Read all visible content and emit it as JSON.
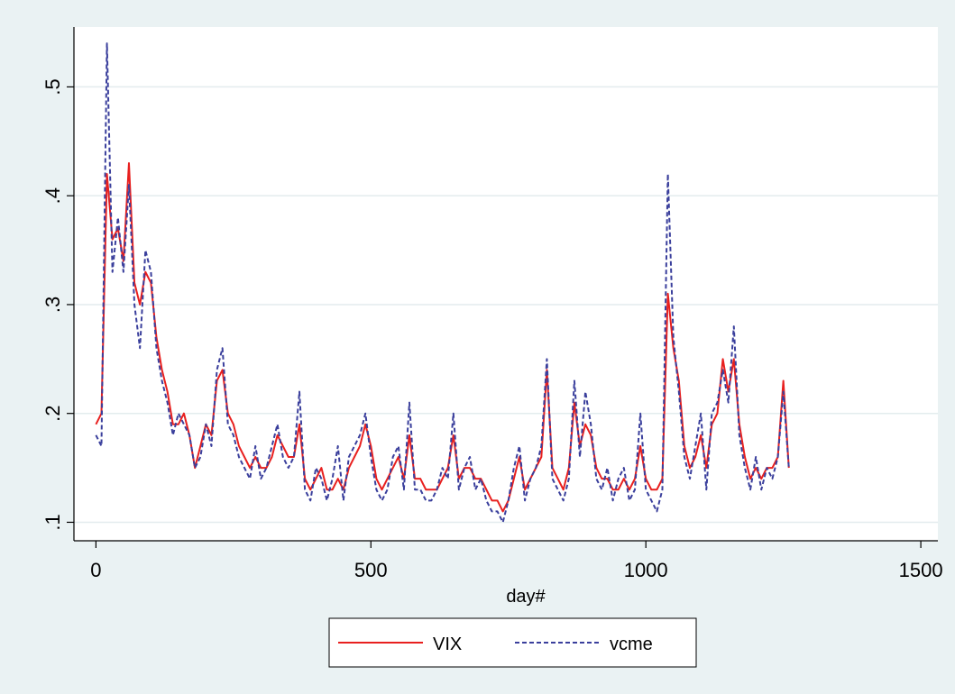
{
  "chart_data": {
    "type": "line",
    "x_label": "day#",
    "x": [
      0,
      10,
      20,
      30,
      40,
      50,
      60,
      70,
      80,
      90,
      100,
      110,
      120,
      130,
      140,
      150,
      160,
      170,
      180,
      190,
      200,
      210,
      220,
      230,
      240,
      250,
      260,
      270,
      280,
      290,
      300,
      310,
      320,
      330,
      340,
      350,
      360,
      370,
      380,
      390,
      400,
      410,
      420,
      430,
      440,
      450,
      460,
      470,
      480,
      490,
      500,
      510,
      520,
      530,
      540,
      550,
      560,
      570,
      580,
      590,
      600,
      610,
      620,
      630,
      640,
      650,
      660,
      670,
      680,
      690,
      700,
      710,
      720,
      730,
      740,
      750,
      760,
      770,
      780,
      790,
      800,
      810,
      820,
      830,
      840,
      850,
      860,
      870,
      880,
      890,
      900,
      910,
      920,
      930,
      940,
      950,
      960,
      970,
      980,
      990,
      1000,
      1010,
      1020,
      1030,
      1040,
      1050,
      1060,
      1070,
      1080,
      1090,
      1100,
      1110,
      1120,
      1130,
      1140,
      1150,
      1160,
      1170,
      1180,
      1190,
      1200,
      1210,
      1220,
      1230,
      1240,
      1250,
      1260
    ],
    "series": [
      {
        "name": "VIX",
        "color": "#e8201f",
        "line_style": "solid",
        "values": [
          0.19,
          0.2,
          0.42,
          0.36,
          0.37,
          0.34,
          0.43,
          0.32,
          0.3,
          0.33,
          0.32,
          0.27,
          0.24,
          0.22,
          0.19,
          0.19,
          0.2,
          0.18,
          0.15,
          0.17,
          0.19,
          0.18,
          0.23,
          0.24,
          0.2,
          0.19,
          0.17,
          0.16,
          0.15,
          0.16,
          0.15,
          0.15,
          0.16,
          0.18,
          0.17,
          0.16,
          0.16,
          0.19,
          0.14,
          0.13,
          0.14,
          0.15,
          0.13,
          0.13,
          0.14,
          0.13,
          0.15,
          0.16,
          0.17,
          0.19,
          0.17,
          0.14,
          0.13,
          0.14,
          0.15,
          0.16,
          0.14,
          0.18,
          0.14,
          0.14,
          0.13,
          0.13,
          0.13,
          0.14,
          0.15,
          0.18,
          0.14,
          0.15,
          0.15,
          0.14,
          0.14,
          0.13,
          0.12,
          0.12,
          0.11,
          0.12,
          0.14,
          0.16,
          0.13,
          0.14,
          0.15,
          0.16,
          0.24,
          0.15,
          0.14,
          0.13,
          0.15,
          0.21,
          0.17,
          0.19,
          0.18,
          0.15,
          0.14,
          0.14,
          0.13,
          0.13,
          0.14,
          0.13,
          0.14,
          0.17,
          0.14,
          0.13,
          0.13,
          0.14,
          0.31,
          0.26,
          0.23,
          0.17,
          0.15,
          0.16,
          0.18,
          0.15,
          0.19,
          0.2,
          0.25,
          0.22,
          0.25,
          0.19,
          0.16,
          0.14,
          0.15,
          0.14,
          0.15,
          0.15,
          0.16,
          0.23,
          0.15
        ]
      },
      {
        "name": "vcme",
        "color": "#3a3f9c",
        "line_style": "dashed",
        "values": [
          0.18,
          0.17,
          0.54,
          0.33,
          0.38,
          0.33,
          0.41,
          0.3,
          0.26,
          0.35,
          0.33,
          0.26,
          0.23,
          0.21,
          0.18,
          0.2,
          0.19,
          0.18,
          0.15,
          0.16,
          0.19,
          0.17,
          0.24,
          0.26,
          0.19,
          0.18,
          0.16,
          0.15,
          0.14,
          0.17,
          0.14,
          0.15,
          0.17,
          0.19,
          0.16,
          0.15,
          0.16,
          0.22,
          0.13,
          0.12,
          0.15,
          0.14,
          0.12,
          0.14,
          0.17,
          0.12,
          0.16,
          0.17,
          0.18,
          0.2,
          0.16,
          0.13,
          0.12,
          0.13,
          0.16,
          0.17,
          0.13,
          0.21,
          0.13,
          0.13,
          0.12,
          0.12,
          0.13,
          0.15,
          0.14,
          0.2,
          0.13,
          0.15,
          0.16,
          0.13,
          0.14,
          0.12,
          0.11,
          0.11,
          0.1,
          0.12,
          0.15,
          0.17,
          0.12,
          0.14,
          0.15,
          0.17,
          0.25,
          0.14,
          0.13,
          0.12,
          0.14,
          0.23,
          0.16,
          0.22,
          0.19,
          0.14,
          0.13,
          0.15,
          0.12,
          0.14,
          0.15,
          0.12,
          0.13,
          0.2,
          0.13,
          0.12,
          0.11,
          0.13,
          0.42,
          0.27,
          0.22,
          0.16,
          0.14,
          0.17,
          0.2,
          0.13,
          0.2,
          0.21,
          0.24,
          0.21,
          0.28,
          0.18,
          0.15,
          0.13,
          0.16,
          0.13,
          0.15,
          0.14,
          0.16,
          0.22,
          0.15
        ]
      }
    ],
    "xlim": [
      -40,
      1531
    ],
    "ylim": [
      0.083,
      0.555
    ],
    "xticks": [
      0,
      500,
      1000,
      1500
    ],
    "yticks": [
      {
        "value": 0.1,
        "label": ".1"
      },
      {
        "value": 0.2,
        "label": ".2"
      },
      {
        "value": 0.3,
        "label": ".3"
      },
      {
        "value": 0.4,
        "label": ".4"
      },
      {
        "value": 0.5,
        "label": ".5"
      }
    ],
    "grid": true,
    "legend": "bottom"
  }
}
